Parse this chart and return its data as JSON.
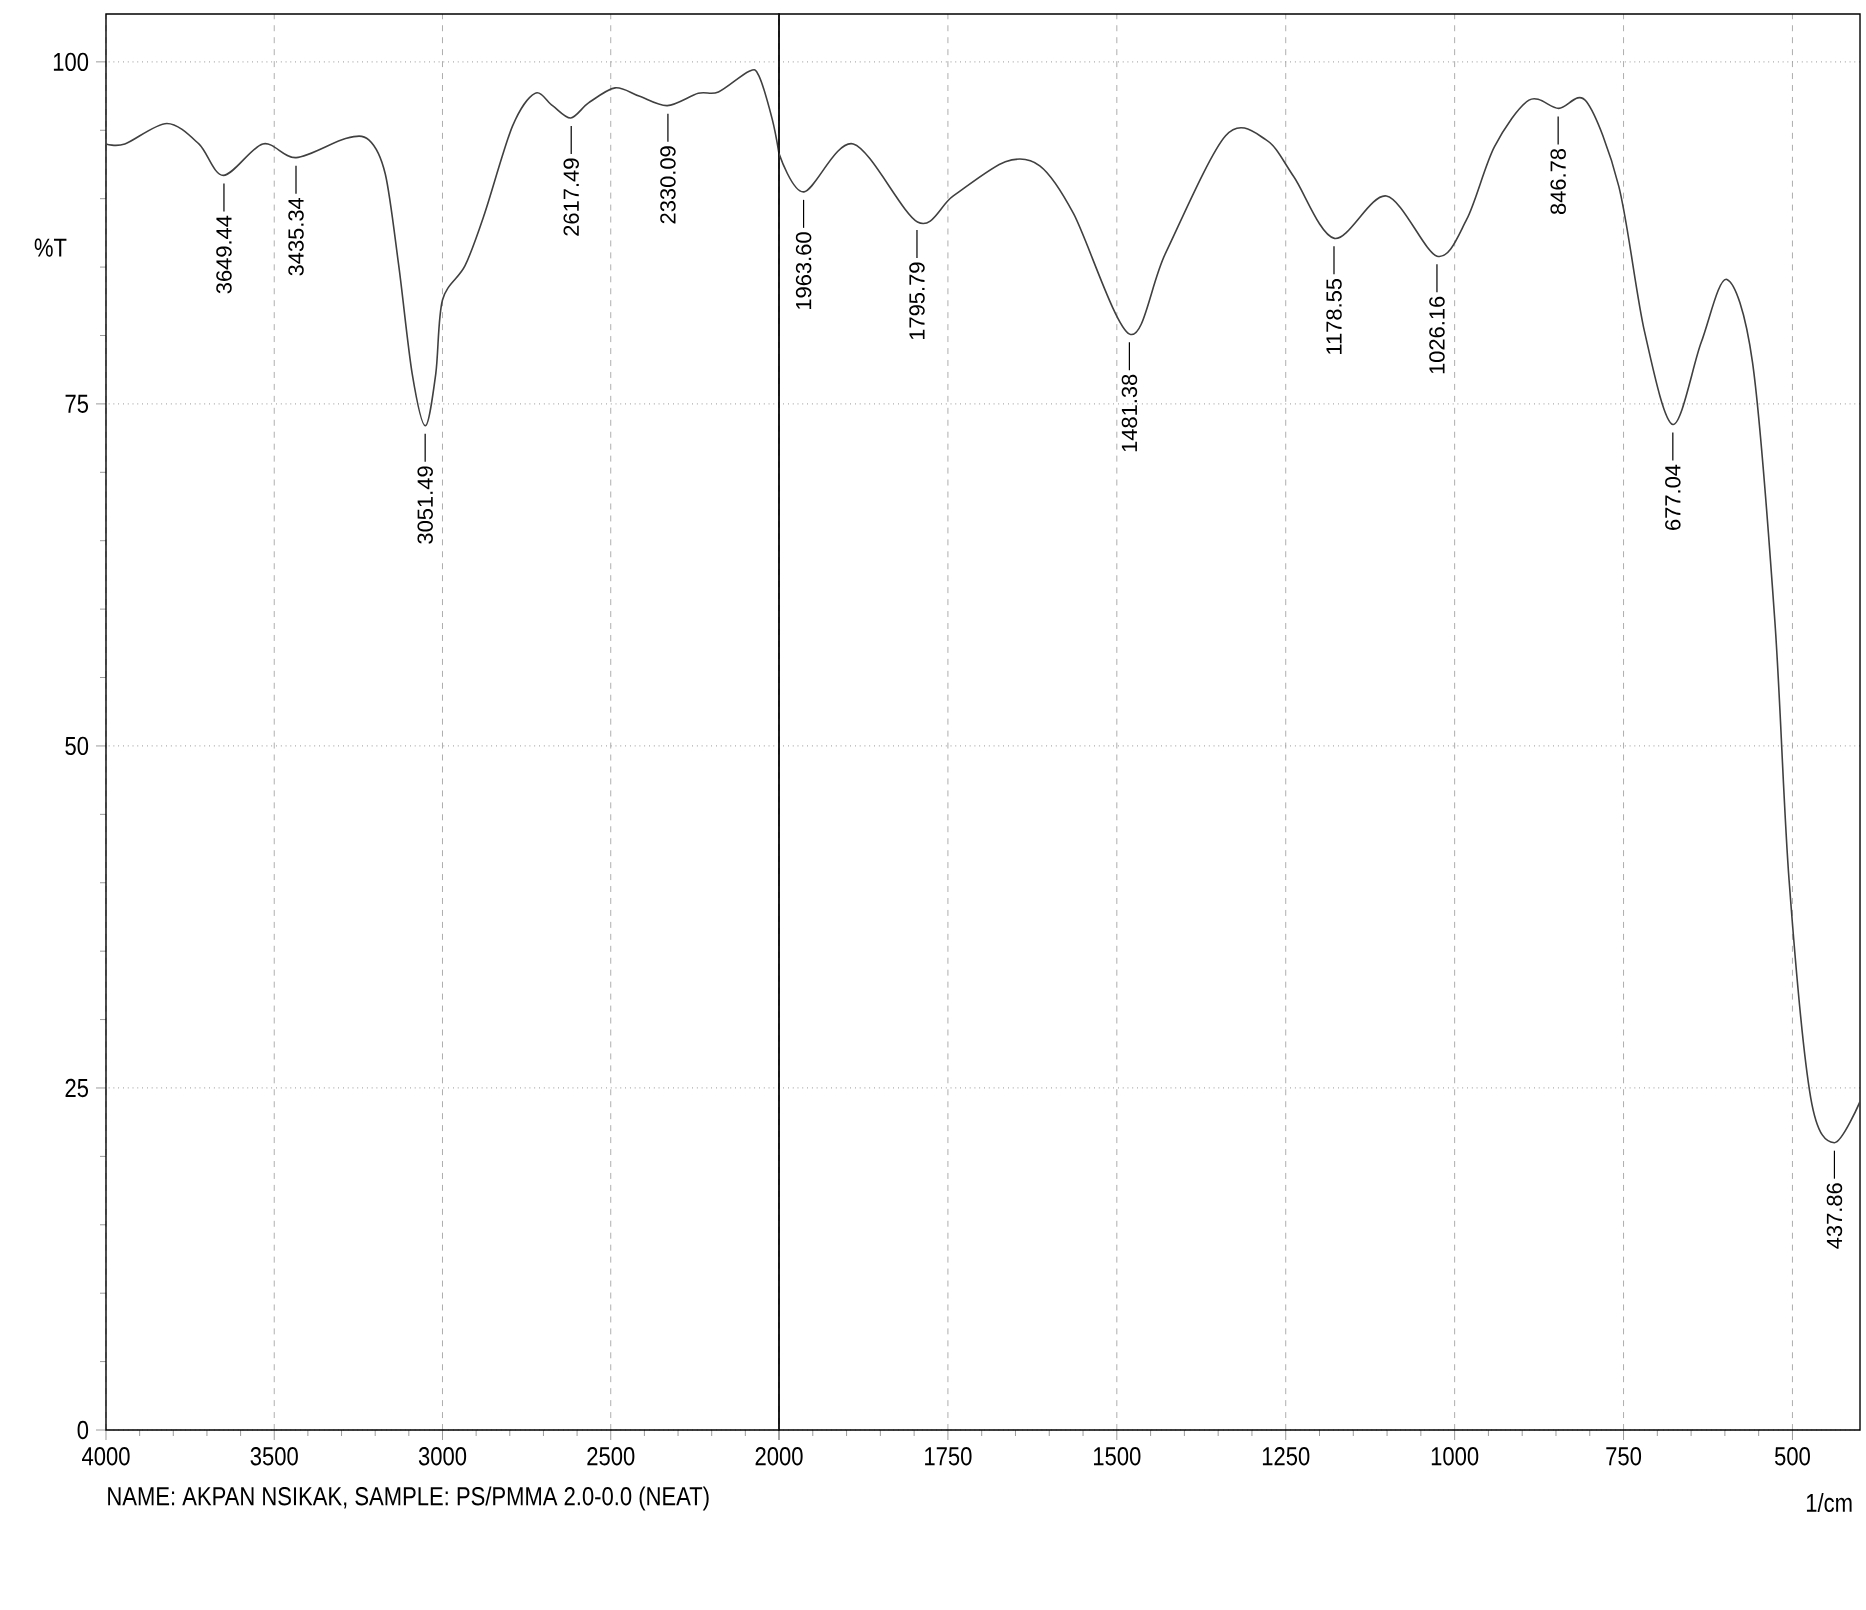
{
  "chart_data": [
    {
      "type": "line",
      "ylabel": "%T",
      "xlim": [
        4000,
        2000
      ],
      "ylim": [
        0,
        103.5
      ],
      "xticks": [
        4000,
        3500,
        3000,
        2500,
        {
          "value": 2000,
          "label": null
        }
      ],
      "yticks": [
        0,
        25,
        50,
        75,
        100
      ],
      "grid": true,
      "series": [
        {
          "color": "#404040",
          "x": [
            4000,
            3944,
            3819,
            3724,
            3651,
            3534,
            3435,
            3288,
            3219,
            3170,
            3130,
            3090,
            3051,
            3020,
            3000,
            2933,
            2875,
            2792,
            2725,
            2673,
            2619,
            2566,
            2487,
            2416,
            2332,
            2240,
            2180,
            2090,
            2060,
            2020,
            2000
          ],
          "values": [
            94.0,
            94.0,
            95.5,
            94.0,
            91.7,
            94.0,
            93.0,
            94.4,
            94.3,
            91.8,
            85.1,
            77.2,
            73.4,
            77.2,
            82.6,
            85.1,
            88.9,
            95.3,
            97.7,
            96.8,
            95.9,
            97.0,
            98.1,
            97.5,
            96.8,
            97.7,
            97.8,
            99.3,
            99.0,
            95.8,
            93.3
          ]
        }
      ],
      "annotations": [
        {
          "text": "3649.44",
          "x": 3649.44,
          "y": 91.7
        },
        {
          "text": "3435.34",
          "x": 3435.34,
          "y": 93.0
        },
        {
          "text": "3051.49",
          "x": 3051.49,
          "y": 73.4
        },
        {
          "text": "2617.49",
          "x": 2617.49,
          "y": 95.9
        },
        {
          "text": "2330.09",
          "x": 2330.09,
          "y": 96.8
        },
        "NAME: AKPAN NSIKAK,  SAMPLE:  PS/PMMA 2.0-0.0  (NEAT)"
      ]
    },
    {
      "type": "line",
      "xlabel": "1/cm",
      "xlim": [
        2000,
        400
      ],
      "ylim": [
        0,
        103.5
      ],
      "xticks": [
        2000,
        1750,
        1500,
        1250,
        1000,
        750,
        500
      ],
      "yticks": [
        0,
        25,
        50,
        75,
        100
      ],
      "tick_labels": "x",
      "grid": true,
      "series": [
        {
          "color": "#404040",
          "x": [
            2000,
            1963,
            1890,
            1795,
            1742,
            1665,
            1614,
            1564,
            1481,
            1428,
            1339,
            1279,
            1238,
            1178,
            1101,
            1026,
            982,
            941,
            890,
            846,
            805,
            757,
            719,
            677,
            635,
            597,
            559,
            526,
            505,
            473,
            438,
            400
          ],
          "values": [
            93.3,
            90.5,
            94.0,
            88.3,
            90.2,
            92.7,
            92.4,
            88.9,
            80.1,
            86.0,
            94.6,
            94.3,
            91.6,
            87.1,
            90.2,
            85.8,
            88.5,
            93.8,
            97.2,
            96.6,
            97.1,
            90.9,
            80.3,
            73.5,
            79.5,
            84.1,
            78.0,
            59.1,
            40.2,
            24.3,
            21.0,
            24.0
          ]
        }
      ],
      "annotations": [
        {
          "text": "1963.60",
          "x": 1963.6,
          "y": 90.5
        },
        {
          "text": "1795.79",
          "x": 1795.79,
          "y": 88.3
        },
        {
          "text": "1481.38",
          "x": 1481.38,
          "y": 80.1
        },
        {
          "text": "1178.55",
          "x": 1178.55,
          "y": 87.1
        },
        {
          "text": "1026.16",
          "x": 1026.16,
          "y": 85.8
        },
        {
          "text": "846.78",
          "x": 846.78,
          "y": 96.6
        },
        {
          "text": "677.04",
          "x": 677.04,
          "y": 73.5
        },
        {
          "text": "437.86",
          "x": 437.86,
          "y": 21.0
        }
      ]
    }
  ]
}
